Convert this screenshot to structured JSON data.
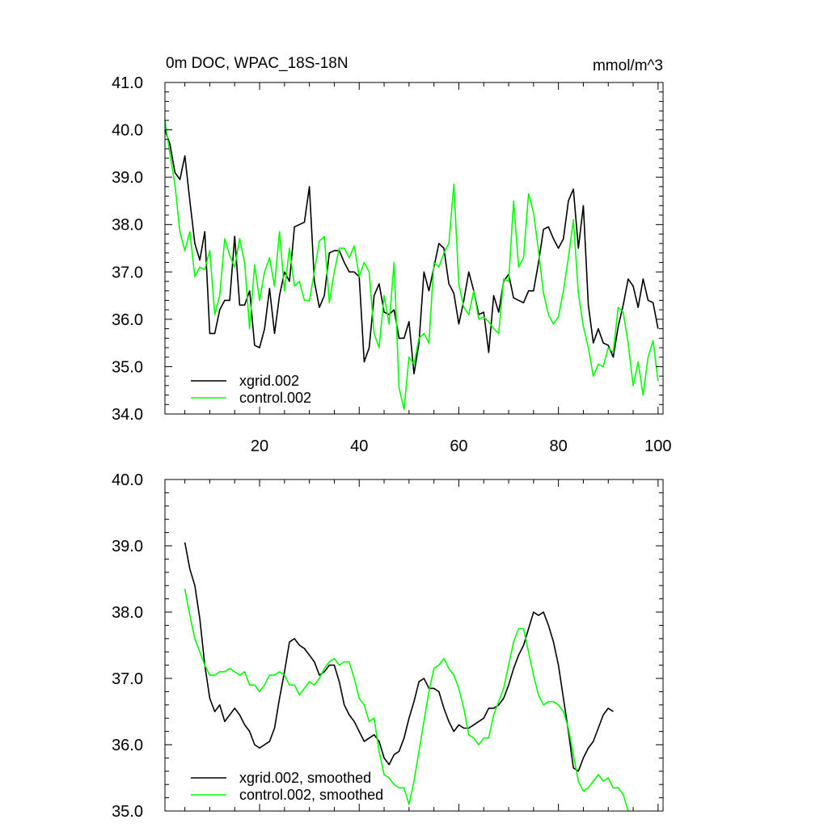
{
  "chart_data": [
    {
      "type": "line",
      "title": "0m DOC, WPAC_18S-18N",
      "units": "mmol/m^3",
      "xlim": [
        1,
        101
      ],
      "ylim": [
        34.0,
        41.0
      ],
      "xticks": [
        20,
        40,
        60,
        80,
        100
      ],
      "xtick_labels": [
        "20",
        "40",
        "60",
        "80",
        "100"
      ],
      "yticks": [
        34.0,
        35.0,
        36.0,
        37.0,
        38.0,
        39.0,
        40.0,
        41.0
      ],
      "ytick_labels": [
        "34.0",
        "35.0",
        "36.0",
        "37.0",
        "38.0",
        "39.0",
        "40.0",
        "41.0"
      ],
      "legend_position": "bottom-left",
      "series": [
        {
          "name": "xgrid.002",
          "color": "#000000",
          "x_start": 1,
          "values": [
            40.0,
            39.7,
            39.1,
            38.95,
            39.45,
            38.5,
            37.6,
            37.25,
            37.85,
            35.7,
            35.7,
            36.2,
            36.4,
            36.4,
            37.75,
            36.3,
            36.3,
            36.6,
            35.45,
            35.4,
            35.8,
            36.65,
            35.7,
            36.5,
            37.0,
            36.8,
            37.95,
            38.0,
            38.05,
            38.8,
            36.8,
            36.25,
            36.5,
            37.4,
            37.45,
            37.45,
            37.2,
            37.0,
            37.0,
            36.9,
            35.1,
            35.4,
            36.5,
            36.75,
            36.15,
            36.1,
            36.2,
            35.6,
            35.6,
            35.95,
            34.85,
            35.5,
            37.0,
            36.6,
            37.1,
            37.6,
            37.5,
            36.75,
            36.55,
            35.9,
            36.4,
            37.0,
            36.6,
            36.1,
            36.15,
            35.3,
            36.5,
            36.15,
            36.8,
            36.95,
            36.45,
            36.4,
            36.35,
            36.6,
            36.6,
            37.2,
            37.9,
            37.95,
            37.7,
            37.5,
            37.7,
            38.5,
            38.75,
            37.5,
            38.4,
            36.3,
            35.5,
            35.8,
            35.5,
            35.45,
            35.2,
            35.85,
            36.3,
            36.85,
            36.7,
            36.25,
            36.85,
            36.4,
            36.35,
            35.8
          ]
        },
        {
          "name": "control.002",
          "color": "#00ff00",
          "x_start": 1,
          "values": [
            40.2,
            39.5,
            38.85,
            37.85,
            37.45,
            37.85,
            36.9,
            37.1,
            37.05,
            37.45,
            36.1,
            36.5,
            37.7,
            37.35,
            37.1,
            37.7,
            37.2,
            35.8,
            37.15,
            36.4,
            37.0,
            37.3,
            36.7,
            37.85,
            36.6,
            37.5,
            36.7,
            36.8,
            36.4,
            36.4,
            37.0,
            37.65,
            37.75,
            36.35,
            37.0,
            37.5,
            37.5,
            37.3,
            37.55,
            36.9,
            37.2,
            37.0,
            35.7,
            35.4,
            36.5,
            35.9,
            37.2,
            34.55,
            34.1,
            35.2,
            35.05,
            35.6,
            35.7,
            35.5,
            37.2,
            37.1,
            37.4,
            37.6,
            38.85,
            36.75,
            36.25,
            36.1,
            36.6,
            36.0,
            36.05,
            35.95,
            35.8,
            35.7,
            36.85,
            36.8,
            38.5,
            37.1,
            37.3,
            38.65,
            38.25,
            37.45,
            36.55,
            36.1,
            35.9,
            36.05,
            36.6,
            37.3,
            38.1,
            36.55,
            35.85,
            35.4,
            34.8,
            35.05,
            35.0,
            35.4,
            35.3,
            36.25,
            36.15,
            35.5,
            34.6,
            35.1,
            34.4,
            35.2,
            35.55,
            34.7
          ]
        }
      ]
    },
    {
      "type": "line",
      "title": "",
      "xlim": [
        1,
        101
      ],
      "ylim": [
        35.0,
        40.0
      ],
      "xticks": [
        20,
        40,
        60,
        80,
        100
      ],
      "yticks": [
        35.0,
        36.0,
        37.0,
        38.0,
        39.0,
        40.0
      ],
      "ytick_labels": [
        "35.0",
        "36.0",
        "37.0",
        "38.0",
        "39.0",
        "40.0"
      ],
      "legend_position": "bottom-left",
      "series": [
        {
          "name": "xgrid.002, smoothed",
          "color": "#000000",
          "x_start": 5,
          "values": [
            39.05,
            38.65,
            38.4,
            37.9,
            37.2,
            36.7,
            36.5,
            36.6,
            36.35,
            36.45,
            36.55,
            36.45,
            36.3,
            36.2,
            36.0,
            35.95,
            36.0,
            36.05,
            36.25,
            36.7,
            37.1,
            37.55,
            37.6,
            37.5,
            37.45,
            37.35,
            37.25,
            37.05,
            37.1,
            37.2,
            37.2,
            36.95,
            36.6,
            36.45,
            36.35,
            36.2,
            36.05,
            36.1,
            36.15,
            36.05,
            35.8,
            35.7,
            35.85,
            35.9,
            36.1,
            36.4,
            36.65,
            36.95,
            37.0,
            36.85,
            36.85,
            36.8,
            36.55,
            36.35,
            36.2,
            36.3,
            36.25,
            36.25,
            36.3,
            36.35,
            36.4,
            36.55,
            36.55,
            36.6,
            36.7,
            36.9,
            37.15,
            37.35,
            37.5,
            37.75,
            38.0,
            37.95,
            38.0,
            37.8,
            37.55,
            37.2,
            36.7,
            36.2,
            35.65,
            35.6,
            35.8,
            35.95,
            36.05,
            36.25,
            36.45,
            36.55,
            36.5
          ]
        },
        {
          "name": "control.002, smoothed",
          "color": "#00ff00",
          "x_start": 5,
          "values": [
            38.35,
            37.95,
            37.6,
            37.4,
            37.2,
            37.05,
            37.05,
            37.1,
            37.1,
            37.15,
            37.1,
            37.05,
            37.1,
            36.9,
            36.9,
            36.8,
            36.9,
            37.05,
            37.05,
            37.1,
            37.05,
            36.9,
            36.9,
            36.75,
            36.85,
            36.95,
            36.9,
            37.0,
            37.15,
            37.25,
            37.3,
            37.2,
            37.25,
            37.25,
            37.0,
            36.7,
            36.6,
            36.35,
            36.4,
            35.9,
            35.55,
            35.5,
            35.4,
            35.35,
            35.35,
            35.1,
            35.45,
            35.9,
            36.35,
            36.8,
            37.15,
            37.2,
            37.3,
            37.15,
            37.05,
            36.85,
            36.55,
            36.15,
            36.1,
            36.0,
            36.1,
            36.1,
            36.45,
            36.65,
            36.85,
            37.2,
            37.55,
            37.75,
            37.75,
            37.4,
            37.05,
            36.75,
            36.6,
            36.65,
            36.65,
            36.6,
            36.5,
            36.25,
            35.85,
            35.45,
            35.3,
            35.35,
            35.45,
            35.55,
            35.45,
            35.5,
            35.35,
            35.35,
            35.25,
            35.0
          ]
        }
      ]
    }
  ]
}
